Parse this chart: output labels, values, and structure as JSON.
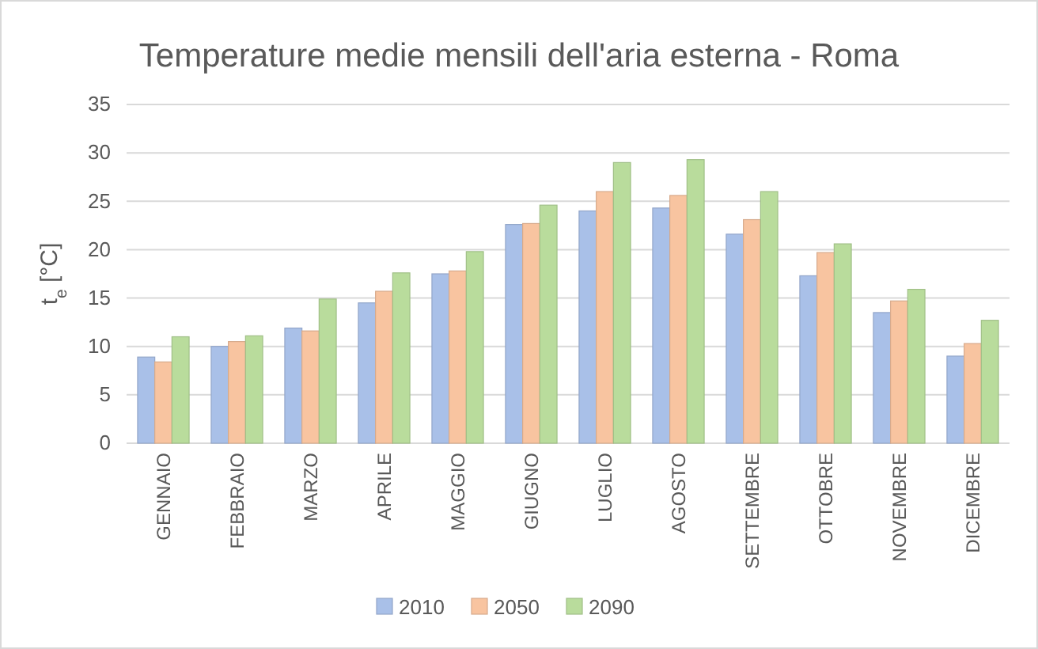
{
  "chart_data": {
    "type": "bar",
    "title": "Temperature medie mensili dell'aria esterna - Roma",
    "ylabel": "t$_{e}$ [°C]",
    "categories": [
      "GENNAIO",
      "FEBBRAIO",
      "MARZO",
      "APRILE",
      "MAGGIO",
      "GIUGNO",
      "LUGLIO",
      "AGOSTO",
      "SETTEMBRE",
      "OTTOBRE",
      "NOVEMBRE",
      "DICEMBRE"
    ],
    "series": [
      {
        "name": "2010",
        "color": "#a9c0e8",
        "values": [
          8.9,
          10.0,
          11.9,
          14.5,
          17.5,
          22.6,
          24.0,
          24.3,
          21.6,
          17.3,
          13.5,
          9.0
        ]
      },
      {
        "name": "2050",
        "color": "#f8c4a0",
        "values": [
          8.4,
          10.5,
          11.6,
          15.7,
          17.8,
          22.7,
          26.0,
          25.6,
          23.1,
          19.7,
          14.7,
          10.3
        ]
      },
      {
        "name": "2090",
        "color": "#b9dc9c",
        "values": [
          11.0,
          11.1,
          14.9,
          17.6,
          19.8,
          24.6,
          29.0,
          29.3,
          26.0,
          20.6,
          15.9,
          12.7
        ]
      }
    ],
    "ylim": [
      0,
      35
    ],
    "yticks": [
      0,
      5,
      10,
      15,
      20,
      25,
      30,
      35
    ],
    "grid": "y",
    "legend": "bottom"
  }
}
